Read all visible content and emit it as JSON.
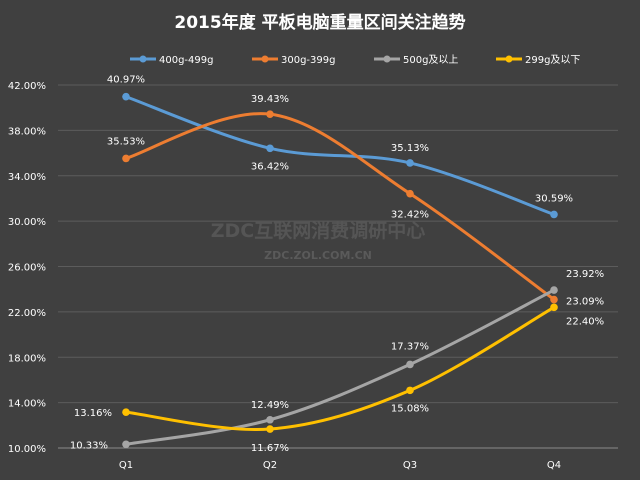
{
  "chart_data": {
    "type": "line",
    "title": "2015年度 平板电脑重量区间关注趋势",
    "categories": [
      "Q1",
      "Q2",
      "Q3",
      "Q4"
    ],
    "ylim": [
      10,
      42
    ],
    "yticks": [
      10,
      14,
      18,
      22,
      26,
      30,
      34,
      38,
      42
    ],
    "ytick_labels": [
      "10.00%",
      "14.00%",
      "18.00%",
      "22.00%",
      "26.00%",
      "30.00%",
      "34.00%",
      "38.00%",
      "42.00%"
    ],
    "grid": true,
    "legend_position": "top",
    "series": [
      {
        "name": "400g-499g",
        "color": "#5b9bd5",
        "values": [
          40.97,
          36.42,
          35.13,
          30.59
        ],
        "labels": [
          "40.97%",
          "36.42%",
          "35.13%",
          "30.59%"
        ]
      },
      {
        "name": "300g-399g",
        "color": "#ed7d31",
        "values": [
          35.53,
          39.43,
          32.42,
          23.09
        ],
        "labels": [
          "35.53%",
          "39.43%",
          "32.42%",
          "23.09%"
        ]
      },
      {
        "name": "500g及以上",
        "color": "#a5a5a5",
        "values": [
          10.33,
          12.49,
          17.37,
          23.92
        ],
        "labels": [
          "10.33%",
          "12.49%",
          "17.37%",
          "23.92%"
        ]
      },
      {
        "name": "299g及以下",
        "color": "#ffc000",
        "values": [
          13.16,
          11.67,
          15.08,
          22.4
        ],
        "labels": [
          "13.16%",
          "11.67%",
          "15.08%",
          "22.40%"
        ]
      }
    ]
  },
  "watermark": {
    "main": "ZDC互联网消费调研中心",
    "sub": "ZDC.ZOL.COM.CN"
  }
}
